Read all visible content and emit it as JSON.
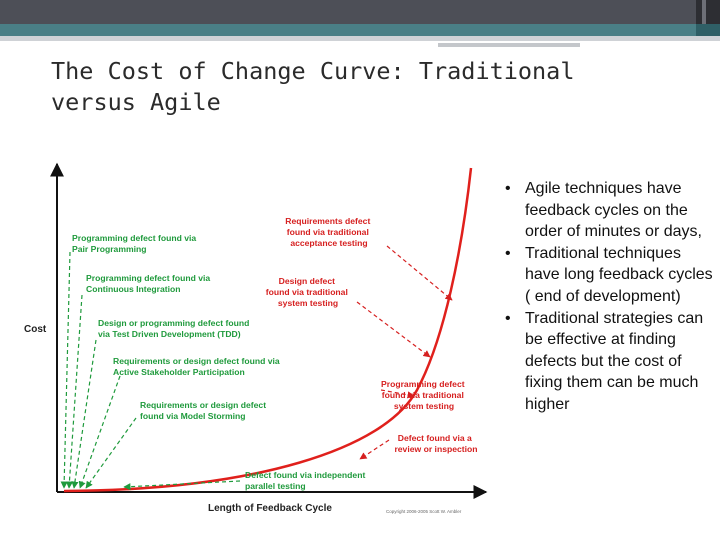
{
  "slide": {
    "title": "The Cost of Change Curve: Traditional versus Agile",
    "bullets": [
      "Agile techniques have feedback cycles on the order of minutes or days,",
      "Traditional techniques have long feedback cycles ( end of development)",
      "Traditional strategies can be effective at finding defects but the cost of fixing them can be much higher"
    ]
  },
  "figure": {
    "y_axis_label": "Cost",
    "x_axis_label": "Length of Feedback Cycle",
    "copyright": "Copyright 2006-2005 Scott W. Ambler",
    "colors": {
      "curve": "#e0201c",
      "agile": "#1f9a3c",
      "traditional": "#d62020",
      "axis": "#111111"
    },
    "annotations": [
      {
        "id": "pair",
        "lines": [
          "Programming defect found via",
          "Pair Programming"
        ],
        "color": "agile"
      },
      {
        "id": "ci",
        "lines": [
          "Programming defect found via",
          "Continuous Integration"
        ],
        "color": "agile"
      },
      {
        "id": "tdd",
        "lines": [
          "Design or programming defect found",
          "via Test Driven Development (TDD)"
        ],
        "color": "agile"
      },
      {
        "id": "asp",
        "lines": [
          "Requirements or design defect found via",
          "Active Stakeholder Participation"
        ],
        "color": "agile"
      },
      {
        "id": "storm",
        "lines": [
          "Requirements or design defect",
          "found via Model Storming"
        ],
        "color": "agile"
      },
      {
        "id": "indep",
        "lines": [
          "Defect found via independent",
          "parallel testing"
        ],
        "color": "agile"
      },
      {
        "id": "req_accept",
        "lines": [
          "Requirements defect",
          "found via traditional",
          "acceptance testing"
        ],
        "color": "traditional"
      },
      {
        "id": "design_sys",
        "lines": [
          "Design defect",
          "found via traditional",
          "system testing"
        ],
        "color": "traditional"
      },
      {
        "id": "prog_sys",
        "lines": [
          "Programming defect",
          "found via traditional",
          "system testing"
        ],
        "color": "traditional"
      },
      {
        "id": "review",
        "lines": [
          "Defect found via a",
          "review or inspection"
        ],
        "color": "traditional"
      }
    ]
  }
}
